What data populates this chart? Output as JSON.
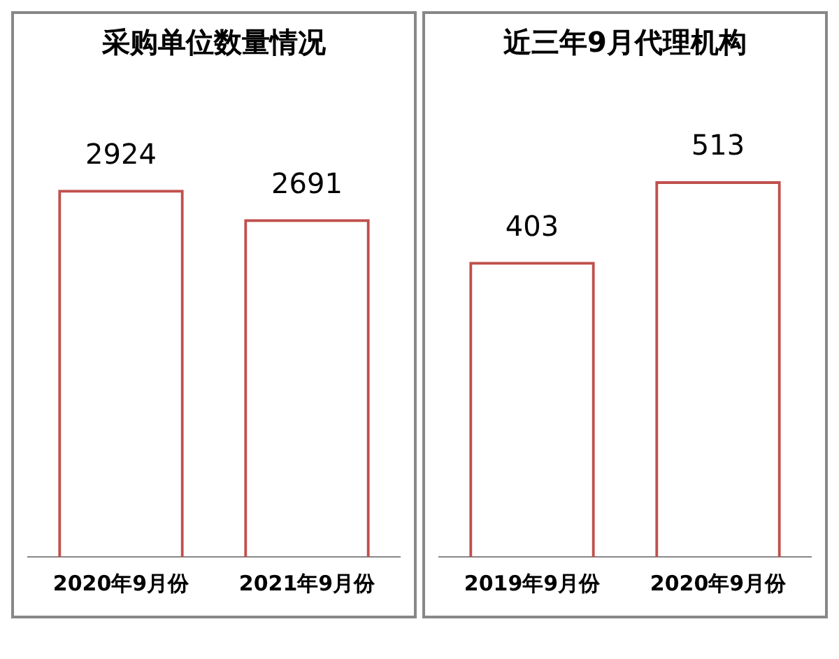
{
  "chart_data": [
    {
      "type": "bar",
      "title": "采购单位数量情况",
      "categories": [
        "2020年9月份",
        "2021年9月份"
      ],
      "values": [
        2924,
        2691
      ],
      "color": "#c0504d",
      "data_labels": true
    },
    {
      "type": "bar",
      "title": "近三年9月代理机构",
      "categories": [
        "2019年9月份",
        "2020年9月份"
      ],
      "values": [
        403,
        513
      ],
      "color": "#c0504d",
      "data_labels": true
    }
  ]
}
